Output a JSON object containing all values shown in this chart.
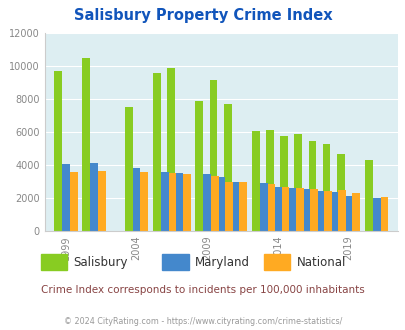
{
  "title": "Salisbury Property Crime Index",
  "years": [
    1999,
    2001,
    2004,
    2006,
    2007,
    2009,
    2010,
    2011,
    2013,
    2014,
    2015,
    2016,
    2017,
    2018,
    2019,
    2021
  ],
  "salisbury": [
    9700,
    10500,
    7500,
    9600,
    9900,
    7900,
    9150,
    7700,
    6050,
    6100,
    5750,
    5850,
    5450,
    5300,
    4650,
    4300
  ],
  "maryland": [
    4050,
    4100,
    3800,
    3600,
    3500,
    3450,
    3250,
    3000,
    2900,
    2650,
    2600,
    2550,
    2400,
    2350,
    2100,
    1980
  ],
  "national": [
    3600,
    3650,
    3600,
    3500,
    3450,
    3350,
    3000,
    2950,
    2850,
    2650,
    2600,
    2550,
    2450,
    2500,
    2300,
    2050
  ],
  "salisbury_color": "#88cc22",
  "maryland_color": "#4488cc",
  "national_color": "#ffaa22",
  "plot_bg": "#ddeef2",
  "ylim": [
    0,
    12000
  ],
  "yticks": [
    0,
    2000,
    4000,
    6000,
    8000,
    10000,
    12000
  ],
  "xtick_years": [
    1999,
    2004,
    2009,
    2014,
    2019
  ],
  "bar_width": 0.55,
  "title_color": "#1155bb",
  "subtitle_color": "#884444",
  "footer_color": "#999999",
  "subtitle": "Crime Index corresponds to incidents per 100,000 inhabitants",
  "footer": "© 2024 CityRating.com - https://www.cityrating.com/crime-statistics/"
}
